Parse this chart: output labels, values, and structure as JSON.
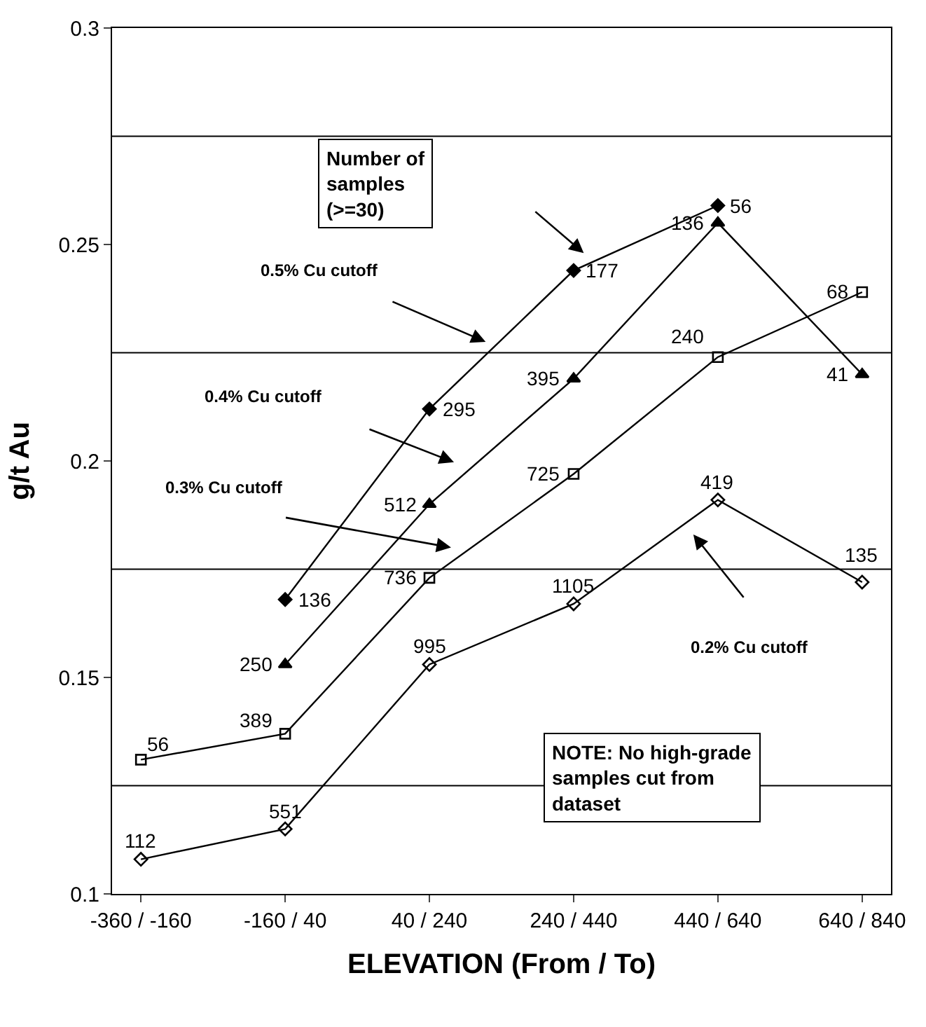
{
  "chart_data": {
    "type": "line",
    "xlabel": "ELEVATION (From / To)",
    "ylabel": "g/t Au",
    "categories": [
      "-360 / -160",
      "-160 / 40",
      "40 / 240",
      "240 / 440",
      "440 / 640",
      "640 / 840"
    ],
    "ylim": [
      0.1,
      0.3
    ],
    "yticks": [
      0.1,
      0.15,
      0.2,
      0.25,
      0.3
    ],
    "ref_lines": [
      {
        "axis": "y",
        "value": 0.125,
        "color": "#000000"
      },
      {
        "axis": "y",
        "value": 0.175,
        "color": "#000000"
      },
      {
        "axis": "y",
        "value": 0.225,
        "color": "#000000"
      },
      {
        "axis": "y",
        "value": 0.275,
        "color": "#000000"
      }
    ],
    "series": [
      {
        "color": "#000000",
        "marker": "diamond",
        "values": [
          null,
          0.168,
          0.212,
          0.244,
          0.259,
          null
        ]
      },
      {
        "color": "#000000",
        "marker": "triangle",
        "values": [
          null,
          0.153,
          0.19,
          0.219,
          0.255,
          0.22
        ]
      },
      {
        "color": "#000000",
        "marker": "square",
        "values": [
          0.131,
          0.137,
          0.173,
          0.197,
          0.224,
          0.239
        ]
      },
      {
        "color": "#000000",
        "marker": "diamond",
        "values": [
          0.108,
          0.115,
          0.153,
          0.167,
          0.191,
          0.172
        ]
      }
    ],
    "annotations": [
      "Number of samples (>=30)",
      "NOTE: No high-grade samples cut from dataset",
      "0.5% Cu cutoff",
      "0.4% Cu cutoff",
      "0.3% Cu cutoff",
      "0.2% Cu cutoff",
      {
        "text": "136",
        "x": "-160 / 40",
        "y": 0.168
      },
      {
        "text": "295",
        "x": "40 / 240",
        "y": 0.212
      },
      {
        "text": "177",
        "x": "240 / 440",
        "y": 0.244
      },
      {
        "text": "56",
        "x": "440 / 640",
        "y": 0.259
      },
      {
        "text": "250",
        "x": "-160 / 40",
        "y": 0.153
      },
      {
        "text": "512",
        "x": "40 / 240",
        "y": 0.19
      },
      {
        "text": "395",
        "x": "240 / 440",
        "y": 0.219
      },
      {
        "text": "136",
        "x": "440 / 640",
        "y": 0.255
      },
      {
        "text": "41",
        "x": "640 / 840",
        "y": 0.22
      },
      {
        "text": "56",
        "x": "-360 / -160",
        "y": 0.131
      },
      {
        "text": "389",
        "x": "-160 / 40",
        "y": 0.137
      },
      {
        "text": "736",
        "x": "40 / 240",
        "y": 0.173
      },
      {
        "text": "725",
        "x": "240 / 440",
        "y": 0.197
      },
      {
        "text": "240",
        "x": "440 / 640",
        "y": 0.224
      },
      {
        "text": "68",
        "x": "640 / 840",
        "y": 0.239
      },
      {
        "text": "112",
        "x": "-360 / -160",
        "y": 0.108
      },
      {
        "text": "551",
        "x": "-160 / 40",
        "y": 0.115
      },
      {
        "text": "995",
        "x": "40 / 240",
        "y": 0.153
      },
      {
        "text": "1105",
        "x": "240 / 440",
        "y": 0.167
      },
      {
        "text": "419",
        "x": "440 / 640",
        "y": 0.191
      },
      {
        "text": "135",
        "x": "640 / 840",
        "y": 0.172
      }
    ]
  }
}
